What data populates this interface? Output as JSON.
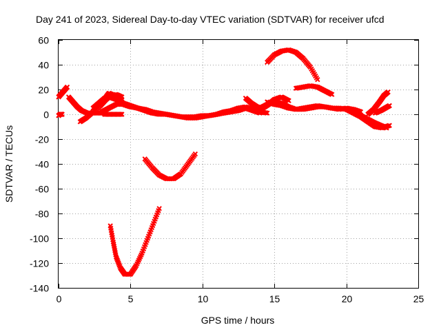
{
  "chart_data": {
    "type": "scatter",
    "title": "Day 241 of 2023, Sidereal Day-to-day VTEC variation (SDTVAR) for receiver ufcd",
    "xlabel": "GPS time / hours",
    "ylabel": "SDTVAR / TECUs",
    "xlim": [
      0,
      25
    ],
    "ylim": [
      -140,
      60
    ],
    "xticks": [
      0,
      5,
      10,
      15,
      20,
      25
    ],
    "yticks": [
      -140,
      -120,
      -100,
      -80,
      -60,
      -40,
      -20,
      0,
      20,
      40,
      60
    ],
    "xtick_labels": [
      "0",
      "5",
      "10",
      "15",
      "20",
      "25"
    ],
    "ytick_labels": [
      "-140",
      "-120",
      "-100",
      "-80",
      "-60",
      "-40",
      "-20",
      "0",
      "20",
      "40",
      "60"
    ],
    "grid": true,
    "marker": "cross",
    "color": "#ff0000",
    "series": [
      {
        "name": "s1",
        "x": [
          0.0,
          0.1,
          0.25
        ],
        "y": [
          -1,
          0,
          0
        ]
      },
      {
        "name": "s2",
        "x": [
          0.0,
          0.3,
          0.6
        ],
        "y": [
          14,
          18,
          22
        ]
      },
      {
        "name": "s3",
        "x": [
          0.7,
          1.0,
          1.3,
          1.6,
          2.0,
          2.4,
          2.8,
          3.2
        ],
        "y": [
          14,
          10,
          6,
          3,
          1,
          1,
          1,
          1
        ]
      },
      {
        "name": "s4",
        "x": [
          1.5,
          1.9,
          2.4,
          2.9,
          3.3,
          3.6,
          4.0,
          4.4
        ],
        "y": [
          -6,
          -3,
          2,
          7,
          12,
          15,
          16,
          14
        ]
      },
      {
        "name": "s5",
        "x": [
          2.4,
          2.8,
          3.2,
          3.6,
          4.0,
          4.4
        ],
        "y": [
          5,
          9,
          13,
          15,
          13,
          10
        ]
      },
      {
        "name": "s6",
        "x": [
          3.3,
          3.5,
          3.7,
          4.0,
          4.4
        ],
        "y": [
          14,
          17,
          16,
          14,
          12
        ]
      },
      {
        "name": "s7",
        "x": [
          3.0,
          3.5,
          4.0,
          4.5,
          5.0,
          5.5,
          6.0,
          6.5,
          7.0,
          7.5,
          8.0,
          8.5,
          9.0,
          9.5,
          10.0,
          10.5,
          11.0,
          11.5,
          12.0,
          12.5,
          13.0,
          13.5,
          14.0
        ],
        "y": [
          2,
          5,
          8,
          8,
          6,
          5,
          4,
          2,
          1,
          0,
          -1,
          -2,
          -2,
          -2,
          -1,
          -1,
          0,
          1,
          2,
          3,
          5,
          3,
          1
        ]
      },
      {
        "name": "s8",
        "x": [
          3.2,
          3.6,
          4.0,
          4.4
        ],
        "y": [
          0,
          0,
          0,
          0
        ]
      },
      {
        "name": "s9",
        "x": [
          3.5,
          4.0,
          4.5,
          5.0,
          5.5,
          6.0,
          6.5,
          7.0,
          7.5,
          8.0,
          8.5,
          9.0,
          9.5,
          10.0,
          10.5,
          11.0,
          11.5,
          12.0,
          12.5,
          13.0,
          13.5,
          14.0,
          14.5
        ],
        "y": [
          14,
          12,
          9,
          7,
          5,
          3,
          1,
          0,
          0,
          -1,
          -2,
          -3,
          -3,
          -2,
          -1,
          0,
          2,
          3,
          5,
          6,
          4,
          2,
          1
        ]
      },
      {
        "name": "s10",
        "x": [
          3.6,
          3.8,
          4.0,
          4.3,
          4.6,
          5.0,
          5.4,
          5.8,
          6.2,
          6.6,
          7.0
        ],
        "y": [
          -90,
          -103,
          -115,
          -124,
          -129,
          -129,
          -122,
          -112,
          -100,
          -88,
          -76
        ]
      },
      {
        "name": "s11",
        "x": [
          6.0,
          6.5,
          7.0,
          7.5,
          8.0,
          8.5,
          9.0,
          9.5
        ],
        "y": [
          -36,
          -43,
          -49,
          -52,
          -52,
          -48,
          -40,
          -32
        ]
      },
      {
        "name": "s12",
        "x": [
          13.0,
          13.4,
          13.8,
          14.2,
          14.6,
          15.0,
          15.5,
          16.0
        ],
        "y": [
          13,
          9,
          6,
          5,
          8,
          12,
          14,
          11
        ]
      },
      {
        "name": "s13",
        "x": [
          14.0,
          14.5,
          15.0,
          15.5,
          16.0,
          16.5,
          17.0,
          17.5,
          18.0,
          18.5,
          19.0,
          19.5,
          20.0,
          20.5
        ],
        "y": [
          5,
          8,
          10,
          9,
          6,
          4,
          4,
          5,
          6,
          6,
          5,
          5,
          4,
          2
        ]
      },
      {
        "name": "s14",
        "x": [
          14.5,
          15.0,
          15.5,
          16.0,
          16.5,
          17.0,
          17.5,
          18.0,
          18.5,
          19.0,
          19.5,
          20.0,
          20.5,
          21.0
        ],
        "y": [
          10,
          8,
          7,
          5,
          4,
          5,
          6,
          7,
          6,
          5,
          4,
          5,
          4,
          2
        ]
      },
      {
        "name": "s15",
        "x": [
          14.5,
          15.0,
          15.5,
          16.0,
          16.5,
          17.0,
          17.5,
          18.0
        ],
        "y": [
          42,
          48,
          51,
          52,
          50,
          45,
          38,
          28
        ]
      },
      {
        "name": "s16",
        "x": [
          16.5,
          17.0,
          17.5,
          18.0,
          18.5,
          19.0
        ],
        "y": [
          21,
          22,
          23,
          22,
          19,
          16
        ]
      },
      {
        "name": "s17",
        "x": [
          20.0,
          20.5,
          21.0,
          21.5,
          22.0,
          22.5,
          23.0
        ],
        "y": [
          4,
          1,
          -2,
          -6,
          -10,
          -11,
          -9
        ]
      },
      {
        "name": "s18",
        "x": [
          20.5,
          21.0,
          21.5,
          22.0,
          22.4,
          22.8
        ],
        "y": [
          2,
          -1,
          -4,
          -7,
          -9,
          -11
        ]
      },
      {
        "name": "s19",
        "x": [
          21.5,
          21.9,
          22.3,
          22.6,
          22.9
        ],
        "y": [
          0,
          4,
          10,
          15,
          18
        ]
      },
      {
        "name": "s20",
        "x": [
          22.0,
          22.4,
          22.7,
          23.0
        ],
        "y": [
          1,
          3,
          5,
          7
        ]
      }
    ]
  }
}
